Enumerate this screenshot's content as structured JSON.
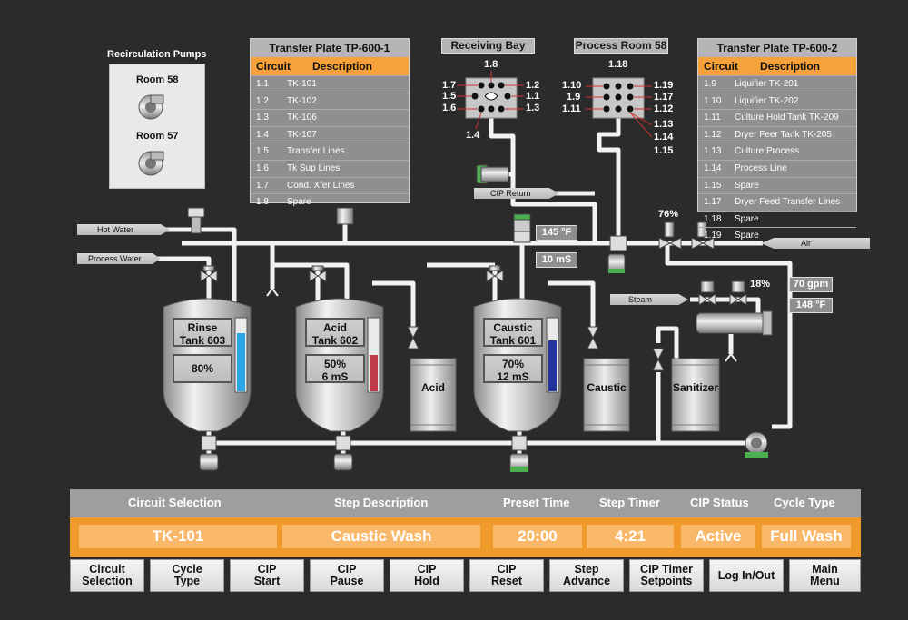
{
  "recirc": {
    "title": "Recirculation Pumps",
    "room1": "Room 58",
    "room2": "Room 57"
  },
  "tp1": {
    "title": "Transfer Plate TP-600-1",
    "col_circuit": "Circuit",
    "col_desc": "Description",
    "rows": [
      {
        "c": "1.1",
        "d": "TK-101"
      },
      {
        "c": "1.2",
        "d": "TK-102"
      },
      {
        "c": "1.3",
        "d": "TK-106"
      },
      {
        "c": "1.4",
        "d": "TK-107"
      },
      {
        "c": "1.5",
        "d": "Transfer Lines"
      },
      {
        "c": "1.6",
        "d": "Tk Sup Lines"
      },
      {
        "c": "1.7",
        "d": "Cond. Xfer Lines"
      },
      {
        "c": "1.8",
        "d": "Spare"
      }
    ]
  },
  "tp2": {
    "title": "Transfer Plate TP-600-2",
    "col_circuit": "Circuit",
    "col_desc": "Description",
    "rows": [
      {
        "c": "1.9",
        "d": "Liquifier TK-201"
      },
      {
        "c": "1.10",
        "d": "Liquifier TK-202"
      },
      {
        "c": "1.11",
        "d": "Culture Hold Tank TK-209"
      },
      {
        "c": "1.12",
        "d": "Dryer Feer Tank TK-205"
      },
      {
        "c": "1.13",
        "d": "Culture Process"
      },
      {
        "c": "1.14",
        "d": "Process Line"
      },
      {
        "c": "1.15",
        "d": "Spare"
      },
      {
        "c": "1.17",
        "d": "Dryer Feed Transfer Lines"
      },
      {
        "c": "1.18",
        "d": "Spare"
      },
      {
        "c": "1.19",
        "d": "Spare"
      }
    ]
  },
  "receiving": {
    "title": "Receiving Bay",
    "top": "1.8",
    "l1": "1.7",
    "l2": "1.5",
    "l3": "1.6",
    "r1": "1.2",
    "r2": "1.1",
    "r3": "1.3",
    "bottom": "1.4"
  },
  "process": {
    "title": "Process Room 58",
    "top": "1.18",
    "l1": "1.10",
    "l2": "1.9",
    "l3": "1.11",
    "r1": "1.19",
    "r2": "1.17",
    "r3": "1.12",
    "b1": "1.13",
    "b2": "1.14",
    "b3": "1.15"
  },
  "signs": {
    "cip_return": "CIP Return",
    "hot_water": "Hot Water",
    "process_water": "Process Water",
    "air": "Air",
    "steam": "Steam"
  },
  "readouts": {
    "temp1": "145 °F",
    "cond": "10 mS",
    "valve_pct": "76%",
    "steam_pct": "18%",
    "flow": "70 gpm",
    "temp2": "148 °F"
  },
  "tanks": {
    "rinse": {
      "name": "Rinse\nTank 603",
      "value": "80%",
      "level": 0.8,
      "color": "#29a6e6"
    },
    "acid": {
      "name": "Acid\nTank 602",
      "value": "50%\n6 mS",
      "level": 0.5,
      "color": "#c0394a"
    },
    "caustic": {
      "name": "Caustic\nTank 601",
      "value": "70%\n12 mS",
      "level": 0.7,
      "color": "#2233a0"
    }
  },
  "drums": {
    "acid": "Acid",
    "caustic": "Caustic",
    "sanitizer": "Sanitizer"
  },
  "control": {
    "headers": {
      "circuit": "Circuit Selection",
      "step": "Step Description",
      "preset": "Preset Time",
      "timer": "Step Timer",
      "status": "CIP Status",
      "cycle": "Cycle Type"
    },
    "values": {
      "circuit": "TK-101",
      "step": "Caustic Wash",
      "preset": "20:00",
      "timer": "4:21",
      "status": "Active",
      "cycle": "Full Wash"
    }
  },
  "buttons": [
    "Circuit\nSelection",
    "Cycle\nType",
    "CIP\nStart",
    "CIP\nPause",
    "CIP\nHold",
    "CIP\nReset",
    "Step\nAdvance",
    "CIP Timer\nSetpoints",
    "Log In/Out",
    "Main\nMenu"
  ],
  "colors": {
    "orange": "#f09a2c",
    "panel_gray": "#8f8f8f",
    "background": "#2b2b2b",
    "valve_green": "#4caf50"
  }
}
